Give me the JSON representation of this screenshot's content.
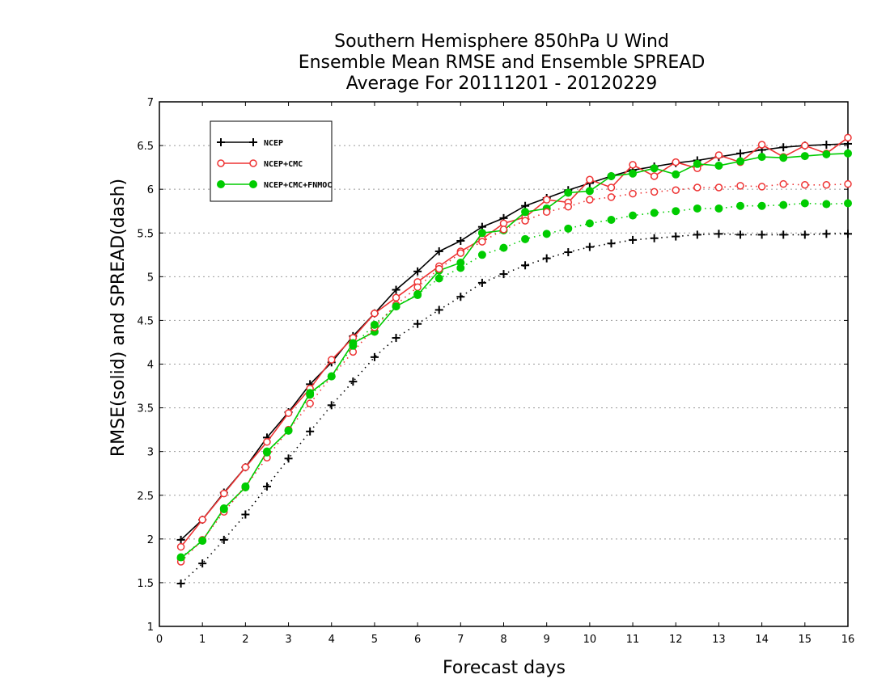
{
  "chart_data": {
    "type": "line",
    "title": [
      "Southern Hemisphere 850hPa U Wind",
      "Ensemble Mean RMSE and Ensemble SPREAD",
      "Average For 20111201 - 20120229"
    ],
    "xlabel": "Forecast days",
    "ylabel": "RMSE(solid) and SPREAD(dash)",
    "xlim": [
      0,
      16
    ],
    "ylim": [
      1,
      7
    ],
    "xticks": [
      0,
      1,
      2,
      3,
      4,
      5,
      6,
      7,
      8,
      9,
      10,
      11,
      12,
      13,
      14,
      15,
      16
    ],
    "yticks": [
      1,
      1.5,
      2,
      2.5,
      3,
      3.5,
      4,
      4.5,
      5,
      5.5,
      6,
      6.5,
      7
    ],
    "grid": "horizontal dotted",
    "legend_position": "top-left",
    "x": [
      0.5,
      1,
      1.5,
      2,
      2.5,
      3,
      3.5,
      4,
      4.5,
      5,
      5.5,
      6,
      6.5,
      7,
      7.5,
      8,
      8.5,
      9,
      9.5,
      10,
      10.5,
      11,
      11.5,
      12,
      12.5,
      13,
      13.5,
      14,
      14.5,
      15,
      15.5,
      16
    ],
    "series": [
      {
        "name": "NCEP",
        "kind": "rmse",
        "style": "solid",
        "marker": "plus",
        "color": "#000000",
        "values": [
          1.99,
          2.22,
          2.53,
          2.82,
          3.16,
          3.45,
          3.77,
          4.02,
          4.32,
          4.58,
          4.85,
          5.06,
          5.29,
          5.41,
          5.57,
          5.67,
          5.81,
          5.9,
          5.99,
          6.07,
          6.15,
          6.22,
          6.26,
          6.3,
          6.33,
          6.37,
          6.41,
          6.45,
          6.48,
          6.5,
          6.51,
          6.52
        ]
      },
      {
        "name": "NCEP+CMC",
        "kind": "rmse",
        "style": "solid",
        "marker": "open-circle",
        "color": "#ee3333",
        "values": [
          1.91,
          2.22,
          2.52,
          2.82,
          3.11,
          3.44,
          3.72,
          4.05,
          4.3,
          4.58,
          4.76,
          4.94,
          5.12,
          5.29,
          5.43,
          5.61,
          5.68,
          5.88,
          5.85,
          6.11,
          6.02,
          6.28,
          6.15,
          6.31,
          6.24,
          6.39,
          6.31,
          6.51,
          6.37,
          6.5,
          6.41,
          6.59
        ]
      },
      {
        "name": "NCEP+CMC+FNMOC",
        "kind": "rmse",
        "style": "solid",
        "marker": "filled-circle",
        "color": "#00cc00",
        "values": [
          1.78,
          1.98,
          2.35,
          2.59,
          3.0,
          3.24,
          3.67,
          3.86,
          4.24,
          4.37,
          4.66,
          4.79,
          5.07,
          5.16,
          5.5,
          5.53,
          5.74,
          5.78,
          5.96,
          5.98,
          6.15,
          6.18,
          6.24,
          6.17,
          6.29,
          6.27,
          6.32,
          6.37,
          6.36,
          6.38,
          6.4,
          6.41
        ]
      },
      {
        "name": "NCEP",
        "kind": "spread",
        "style": "dotted",
        "marker": "plus",
        "color": "#000000",
        "values": [
          1.49,
          1.72,
          1.99,
          2.28,
          2.6,
          2.92,
          3.23,
          3.53,
          3.8,
          4.08,
          4.3,
          4.46,
          4.62,
          4.77,
          4.93,
          5.03,
          5.13,
          5.21,
          5.28,
          5.34,
          5.38,
          5.42,
          5.44,
          5.46,
          5.48,
          5.49,
          5.48,
          5.48,
          5.48,
          5.48,
          5.49,
          5.49
        ]
      },
      {
        "name": "NCEP+CMC",
        "kind": "spread",
        "style": "dotted",
        "marker": "open-circle",
        "color": "#ee3333",
        "values": [
          1.74,
          1.99,
          2.31,
          2.6,
          2.93,
          3.25,
          3.55,
          3.86,
          4.14,
          4.42,
          4.68,
          4.88,
          5.09,
          5.27,
          5.4,
          5.54,
          5.64,
          5.74,
          5.8,
          5.88,
          5.91,
          5.95,
          5.97,
          5.99,
          6.02,
          6.02,
          6.04,
          6.03,
          6.06,
          6.05,
          6.05,
          6.06
        ]
      },
      {
        "name": "NCEP+CMC+FNMOC",
        "kind": "spread",
        "style": "dotted",
        "marker": "filled-circle",
        "color": "#00cc00",
        "values": [
          1.79,
          1.98,
          2.34,
          2.6,
          2.99,
          3.24,
          3.65,
          3.86,
          4.21,
          4.45,
          4.66,
          4.8,
          4.98,
          5.1,
          5.25,
          5.33,
          5.43,
          5.49,
          5.55,
          5.61,
          5.65,
          5.7,
          5.73,
          5.75,
          5.78,
          5.78,
          5.81,
          5.81,
          5.82,
          5.84,
          5.83,
          5.84
        ]
      }
    ]
  }
}
